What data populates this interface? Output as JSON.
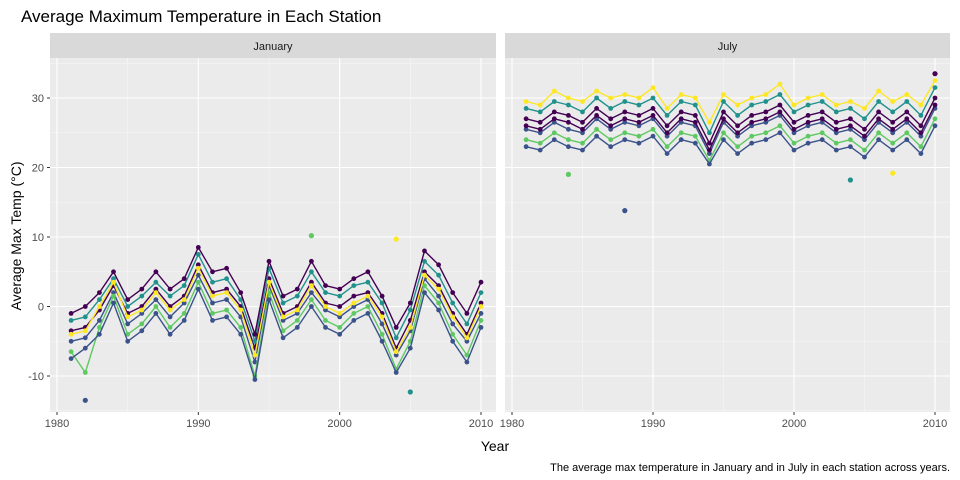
{
  "chart_data": {
    "type": "line",
    "title": "Average Maximum Temperature in Each Station",
    "caption": "The average max temperature in January and in July in each station across years.",
    "xlabel": "Year",
    "ylabel": "Average Max Temp (°C)",
    "xlim": [
      1980,
      2010
    ],
    "ylim": [
      -15,
      35
    ],
    "x_ticks": [
      1980,
      1990,
      2000,
      2010
    ],
    "y_ticks": [
      -10,
      0,
      10,
      20,
      30
    ],
    "grid": true,
    "facets": [
      "January",
      "July"
    ],
    "years": [
      1981,
      1982,
      1983,
      1984,
      1985,
      1986,
      1987,
      1988,
      1989,
      1990,
      1991,
      1992,
      1993,
      1994,
      1995,
      1996,
      1997,
      1998,
      1999,
      2000,
      2001,
      2002,
      2003,
      2004,
      2005,
      2006,
      2007,
      2008,
      2009,
      2010
    ],
    "color_scale": [
      "#440154",
      "#3b528b",
      "#21918c",
      "#5ec962",
      "#fde725"
    ],
    "series": [
      {
        "facet": "January",
        "values": [
          -3.5,
          -3,
          -0.5,
          3,
          -1,
          0,
          2.5,
          0,
          1.5,
          6,
          2,
          2.5,
          0,
          -6,
          4,
          -1,
          0,
          3.5,
          0.5,
          0,
          1.5,
          2,
          -1,
          -6,
          -2,
          5,
          3,
          -1,
          -4,
          0.5
        ]
      },
      {
        "facet": "January",
        "values": [
          -5,
          -4.5,
          -2,
          2,
          -2.5,
          -1,
          1,
          -1.5,
          0.5,
          4.5,
          0.5,
          1,
          -1.5,
          -8,
          3,
          -2,
          -1,
          2,
          -0.5,
          -1.5,
          0,
          1,
          -2.5,
          -7,
          -3.5,
          4,
          1.5,
          -2.5,
          -5,
          -1
        ]
      },
      {
        "facet": "January",
        "values": [
          -2,
          -1.5,
          1,
          4,
          0,
          1.5,
          3.5,
          1.5,
          3,
          7.5,
          3.5,
          4,
          1,
          -5,
          5.5,
          0.5,
          1.5,
          5,
          2,
          1.5,
          3,
          3.5,
          0.5,
          -4.5,
          -0.5,
          6.5,
          4.5,
          0.5,
          -2.5,
          2
        ]
      },
      {
        "facet": "January",
        "values": [
          -6.5,
          -9.5,
          -3,
          1.5,
          -4,
          -2.5,
          0,
          -3,
          -1,
          3.5,
          -1,
          -0.5,
          -3,
          -10,
          2,
          -3.5,
          -2,
          1,
          -2,
          -3,
          -1,
          0,
          -4,
          -9,
          -5,
          3,
          0.5,
          -4,
          -7,
          -2
        ]
      },
      {
        "facet": "January",
        "values": [
          -4,
          -3.5,
          0,
          3.5,
          -1.5,
          -0.5,
          2,
          -0.5,
          1,
          5.5,
          1.5,
          2,
          -0.5,
          -7,
          3.5,
          -1.5,
          -0.5,
          3,
          0,
          -1,
          0.5,
          1.5,
          -1.5,
          -6.5,
          -3,
          4.5,
          2.5,
          -1.5,
          -4.5,
          0
        ]
      },
      {
        "facet": "January",
        "values": [
          -1,
          0,
          2,
          5,
          1,
          2.5,
          5,
          2.5,
          4,
          8.5,
          5,
          5.5,
          2,
          -4,
          6.5,
          1.5,
          2.5,
          6.5,
          3,
          2.5,
          4,
          5,
          1.5,
          -3,
          0.5,
          8,
          6,
          2,
          -1,
          3.5
        ]
      },
      {
        "facet": "January",
        "values": [
          -7.5,
          -6,
          -4,
          0.5,
          -5,
          -3.5,
          -1,
          -4,
          -2,
          2.5,
          -2,
          -1.5,
          -4,
          -10.5,
          1,
          -4.5,
          -3,
          0,
          -3,
          -4,
          -2,
          -1,
          -5,
          -9.5,
          -6,
          2,
          -0.5,
          -5,
          -8,
          -3
        ]
      },
      {
        "facet": "July",
        "values": [
          27,
          26.5,
          28,
          27.5,
          26.5,
          28.5,
          27,
          28,
          27.5,
          28.5,
          26,
          28,
          27.5,
          23.5,
          28,
          26,
          27.5,
          28,
          29,
          26.5,
          27.5,
          28,
          26.5,
          27,
          25.5,
          28,
          26.5,
          28,
          26,
          30
        ]
      },
      {
        "facet": "July",
        "values": [
          25.5,
          25,
          26.5,
          25.5,
          25,
          27,
          25.5,
          26.5,
          26,
          27,
          24.5,
          26.5,
          26,
          22,
          26.5,
          24.5,
          26,
          26.5,
          27.5,
          25,
          26,
          26.5,
          25,
          25.5,
          24,
          26.5,
          25,
          26.5,
          24.5,
          28.5
        ]
      },
      {
        "facet": "July",
        "values": [
          28.5,
          28,
          29.5,
          29,
          28,
          30,
          28.5,
          29.5,
          29,
          30,
          27.5,
          29.5,
          29,
          25,
          29.5,
          27.5,
          29,
          29.5,
          30.5,
          28,
          29,
          29.5,
          28,
          28.5,
          27,
          29.5,
          28,
          29.5,
          27.5,
          31.5
        ]
      },
      {
        "facet": "July",
        "values": [
          24,
          23.5,
          25,
          24,
          23.5,
          25.5,
          24,
          25,
          24.5,
          25.5,
          23,
          25,
          24.5,
          21,
          25,
          23,
          24.5,
          25,
          26,
          23.5,
          24.5,
          25,
          23.5,
          24,
          22.5,
          25,
          23.5,
          25,
          23,
          27
        ]
      },
      {
        "facet": "July",
        "values": [
          29.5,
          29,
          31,
          30,
          29.5,
          31,
          30,
          30.5,
          30,
          31.5,
          28.5,
          30.5,
          30,
          26.5,
          30.5,
          29,
          30,
          30.5,
          32,
          29,
          30,
          30.5,
          29,
          29.5,
          28.5,
          31,
          29.5,
          30.5,
          29,
          32.5
        ]
      },
      {
        "facet": "July",
        "values": [
          26,
          25.5,
          27,
          26.5,
          25.5,
          27.5,
          26,
          27,
          26.5,
          27.5,
          25,
          27,
          26.5,
          22.5,
          27,
          25,
          26.5,
          27,
          28,
          25.5,
          26.5,
          27,
          25.5,
          26,
          24.5,
          27,
          25.5,
          27,
          25,
          29
        ]
      },
      {
        "facet": "July",
        "values": [
          23,
          22.5,
          24,
          23,
          22.5,
          24.5,
          23,
          24,
          23.5,
          24.5,
          22,
          24,
          23.5,
          20.5,
          24,
          22,
          23.5,
          24,
          25,
          22.5,
          23.5,
          24,
          22.5,
          23,
          21.5,
          24,
          22.5,
          24,
          22,
          26
        ]
      }
    ],
    "outliers": [
      {
        "facet": "January",
        "x": 1982,
        "y": -13.5
      },
      {
        "facet": "January",
        "x": 2005,
        "y": -12.3
      },
      {
        "facet": "January",
        "x": 1998,
        "y": 10.2
      },
      {
        "facet": "January",
        "x": 2004,
        "y": 9.7
      },
      {
        "facet": "July",
        "x": 1988,
        "y": 13.8
      },
      {
        "facet": "July",
        "x": 2004,
        "y": 18.2
      },
      {
        "facet": "July",
        "x": 1984,
        "y": 19
      },
      {
        "facet": "July",
        "x": 2007,
        "y": 19.2
      },
      {
        "facet": "July",
        "x": 2010,
        "y": 33.5
      }
    ]
  }
}
